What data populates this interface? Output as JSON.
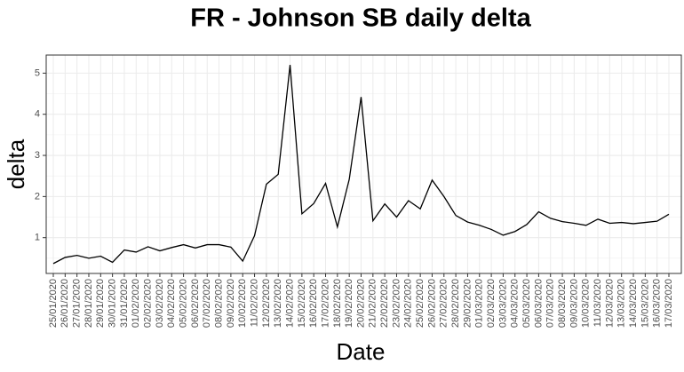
{
  "chart_data": {
    "type": "line",
    "title": "FR - Johnson SB daily delta",
    "x_label": "Date",
    "y_label": "delta",
    "categories": [
      "25/01/2020",
      "26/01/2020",
      "27/01/2020",
      "28/01/2020",
      "29/01/2020",
      "30/01/2020",
      "31/01/2020",
      "01/02/2020",
      "02/02/2020",
      "03/02/2020",
      "04/02/2020",
      "05/02/2020",
      "06/02/2020",
      "07/02/2020",
      "08/02/2020",
      "09/02/2020",
      "10/02/2020",
      "11/02/2020",
      "12/02/2020",
      "13/02/2020",
      "14/02/2020",
      "15/02/2020",
      "16/02/2020",
      "17/02/2020",
      "18/02/2020",
      "19/02/2020",
      "20/02/2020",
      "21/02/2020",
      "22/02/2020",
      "23/02/2020",
      "24/02/2020",
      "25/02/2020",
      "26/02/2020",
      "27/02/2020",
      "28/02/2020",
      "29/02/2020",
      "01/03/2020",
      "02/03/2020",
      "03/03/2020",
      "04/03/2020",
      "05/03/2020",
      "06/03/2020",
      "07/03/2020",
      "08/03/2020",
      "09/03/2020",
      "10/03/2020",
      "11/03/2020",
      "12/03/2020",
      "13/03/2020",
      "14/03/2020",
      "15/03/2020",
      "16/03/2020",
      "17/03/2020"
    ],
    "values": [
      0.37,
      0.52,
      0.57,
      0.5,
      0.55,
      0.4,
      0.7,
      0.65,
      0.78,
      0.68,
      0.76,
      0.83,
      0.75,
      0.83,
      0.83,
      0.77,
      0.43,
      1.05,
      2.3,
      2.54,
      5.2,
      1.58,
      1.83,
      2.32,
      1.26,
      2.42,
      4.42,
      1.41,
      1.82,
      1.5,
      1.9,
      1.7,
      2.4,
      2.0,
      1.54,
      1.38,
      1.3,
      1.2,
      1.06,
      1.15,
      1.32,
      1.63,
      1.47,
      1.39,
      1.35,
      1.3,
      1.45,
      1.35,
      1.37,
      1.34,
      1.37,
      1.4,
      1.57
    ],
    "color": "#000000",
    "ylim": [
      0.13,
      5.44
    ],
    "yticks": [
      1,
      2,
      3,
      4,
      5
    ],
    "grid": true
  }
}
